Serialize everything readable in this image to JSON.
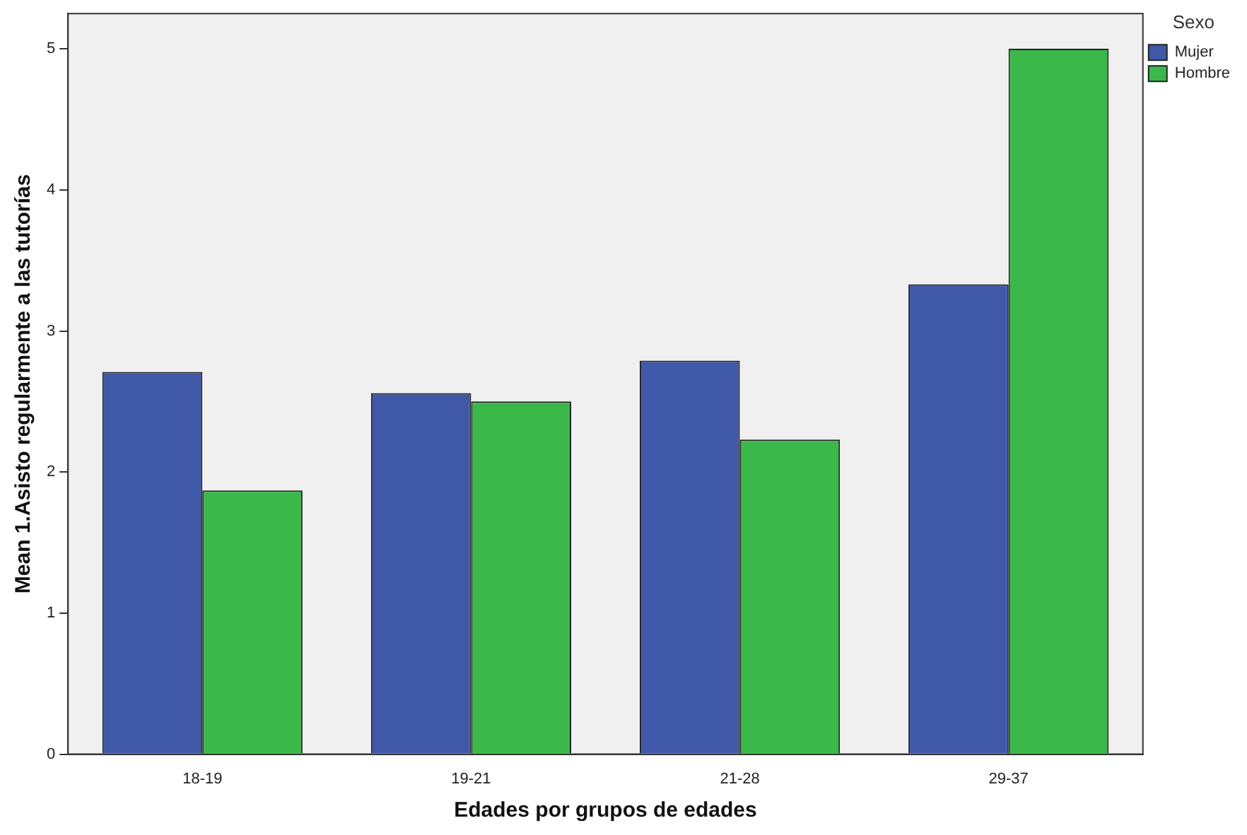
{
  "chart_data": {
    "type": "bar",
    "xlabel": "Edades por grupos de edades",
    "ylabel": "Mean 1.Asisto regularmente a las tutorías",
    "legend_title": "Sexo",
    "categories": [
      "18-19",
      "19-21",
      "21-28",
      "29-37"
    ],
    "series": [
      {
        "name": "Mujer",
        "color": "#3f59a8",
        "values": [
          2.71,
          2.56,
          2.79,
          3.33
        ]
      },
      {
        "name": "Hombre",
        "color": "#3bb84a",
        "values": [
          1.87,
          2.5,
          2.23,
          5.0
        ]
      }
    ],
    "ylim": [
      0,
      5.25
    ],
    "yticks": [
      0,
      1,
      2,
      3,
      4,
      5
    ],
    "grid": false,
    "legend": "top right"
  }
}
